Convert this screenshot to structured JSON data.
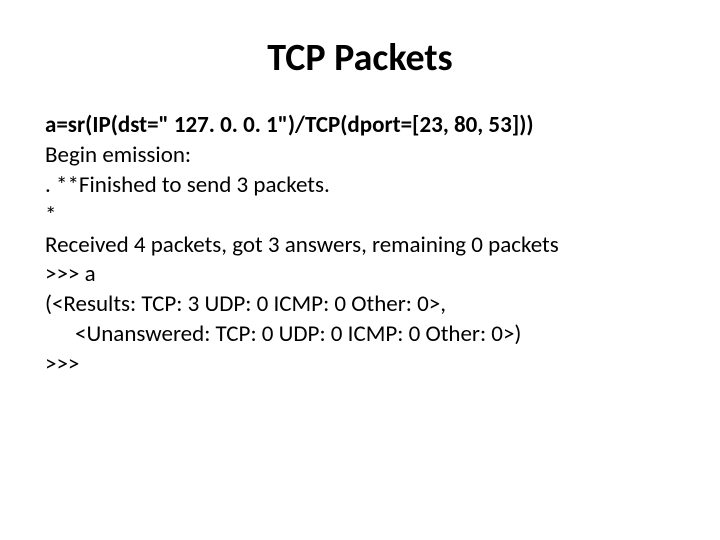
{
  "title": "TCP Packets",
  "lines": [
    {
      "text": "a=sr(IP(dst=\" 127. 0. 0. 1\")/TCP(dport=[23, 80, 53]))",
      "bold": true,
      "indent": false
    },
    {
      "text": "Begin emission:",
      "bold": false,
      "indent": false
    },
    {
      "text": ". **Finished to send 3 packets.",
      "bold": false,
      "indent": false
    },
    {
      "text": "*",
      "bold": false,
      "indent": false
    },
    {
      "text": "Received 4 packets, got 3 answers, remaining 0 packets",
      "bold": false,
      "indent": false
    },
    {
      "text": ">>> a",
      "bold": false,
      "indent": false
    },
    {
      "text": "(<Results: TCP: 3 UDP: 0 ICMP: 0 Other: 0>,",
      "bold": false,
      "indent": false
    },
    {
      "text": "<Unanswered: TCP: 0 UDP: 0 ICMP: 0 Other: 0>)",
      "bold": false,
      "indent": true
    },
    {
      "text": ">>>",
      "bold": false,
      "indent": false
    }
  ],
  "colors": {
    "background": "#ffffff",
    "text": "#000000"
  },
  "typography": {
    "title_fontsize": 38,
    "body_fontsize": 23,
    "font_family": "Calibri"
  }
}
